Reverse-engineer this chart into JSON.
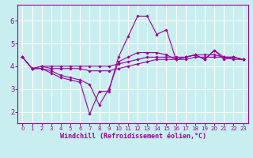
{
  "background_color": "#c8eef0",
  "grid_color": "#aadddd",
  "line_color": "#990099",
  "xlabel": "Windchill (Refroidissement éolien,°C)",
  "xlabel_color": "#990099",
  "xlim": [
    -0.5,
    23.5
  ],
  "ylim": [
    1.5,
    6.7
  ],
  "yticks": [
    2,
    3,
    4,
    5,
    6
  ],
  "xticks": [
    0,
    1,
    2,
    3,
    4,
    5,
    6,
    7,
    8,
    9,
    10,
    11,
    12,
    13,
    14,
    15,
    16,
    17,
    18,
    19,
    20,
    21,
    22,
    23
  ],
  "lines": [
    {
      "x": [
        0,
        1,
        2,
        3,
        4,
        5,
        6,
        7,
        8,
        9,
        10,
        11,
        12,
        13,
        14,
        15,
        16,
        17,
        18,
        19,
        20,
        21,
        22,
        23
      ],
      "y": [
        4.4,
        3.9,
        3.9,
        3.7,
        3.5,
        3.4,
        3.3,
        1.9,
        2.9,
        2.9,
        4.4,
        5.3,
        6.2,
        6.2,
        5.4,
        5.6,
        4.3,
        4.4,
        4.5,
        4.3,
        4.7,
        4.4,
        4.4,
        4.3
      ]
    },
    {
      "x": [
        0,
        1,
        2,
        3,
        4,
        5,
        6,
        7,
        8,
        9,
        10,
        11,
        12,
        13,
        14,
        15,
        16,
        17,
        18,
        19,
        20,
        21,
        22,
        23
      ],
      "y": [
        4.4,
        3.9,
        3.9,
        3.8,
        3.6,
        3.5,
        3.4,
        3.2,
        2.3,
        3.0,
        4.2,
        4.4,
        4.6,
        4.6,
        4.6,
        4.5,
        4.3,
        4.4,
        4.5,
        4.3,
        4.7,
        4.3,
        4.4,
        4.3
      ]
    },
    {
      "x": [
        0,
        1,
        2,
        3,
        4,
        5,
        6,
        7,
        8,
        9,
        10,
        11,
        12,
        13,
        14,
        15,
        16,
        17,
        18,
        19,
        20,
        21,
        22,
        23
      ],
      "y": [
        4.4,
        3.9,
        4.0,
        3.9,
        3.9,
        3.9,
        3.9,
        3.8,
        3.8,
        3.8,
        3.9,
        4.0,
        4.1,
        4.2,
        4.3,
        4.3,
        4.3,
        4.3,
        4.4,
        4.4,
        4.4,
        4.4,
        4.3,
        4.3
      ]
    },
    {
      "x": [
        0,
        1,
        2,
        3,
        4,
        5,
        6,
        7,
        8,
        9,
        10,
        11,
        12,
        13,
        14,
        15,
        16,
        17,
        18,
        19,
        20,
        21,
        22,
        23
      ],
      "y": [
        4.4,
        3.9,
        4.0,
        4.0,
        4.0,
        4.0,
        4.0,
        4.0,
        4.0,
        4.0,
        4.1,
        4.2,
        4.3,
        4.4,
        4.4,
        4.4,
        4.4,
        4.4,
        4.5,
        4.5,
        4.5,
        4.4,
        4.4,
        4.3
      ]
    }
  ],
  "tick_fontsize": 5,
  "xlabel_fontsize": 6,
  "tick_color": "#990099",
  "spine_color": "#990099"
}
